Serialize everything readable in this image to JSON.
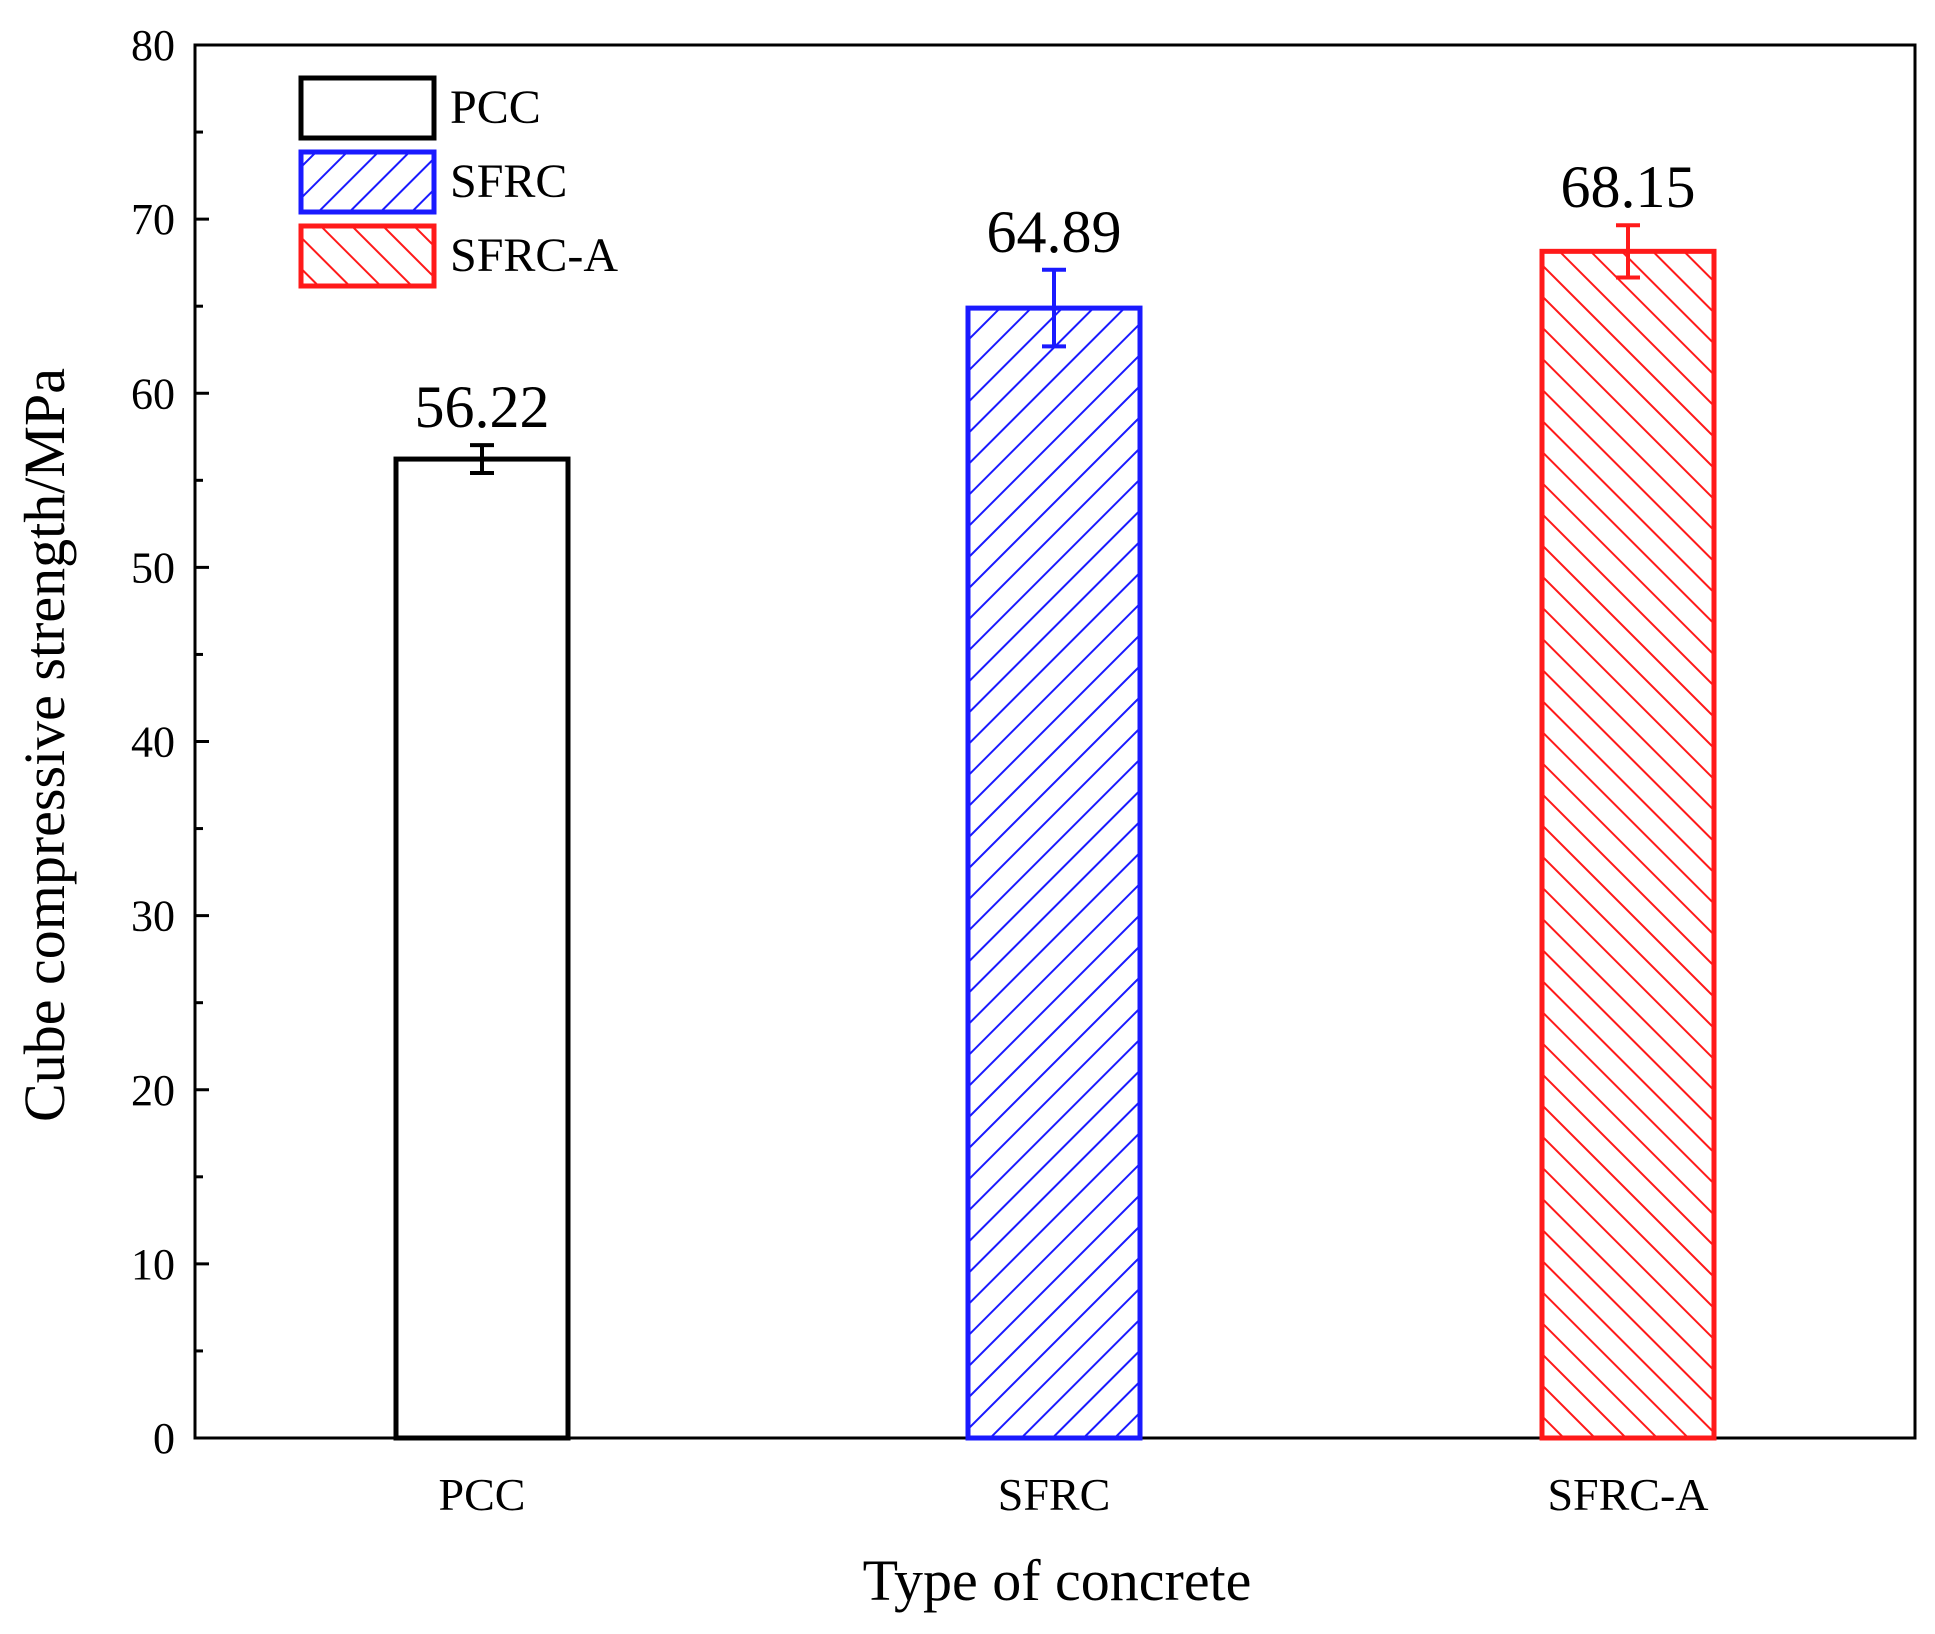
{
  "chart_data": {
    "type": "bar",
    "xlabel": "Type of concrete",
    "ylabel": "Cube compressive strength/MPa",
    "ylim": [
      0,
      80
    ],
    "yticks": [
      0,
      10,
      20,
      30,
      40,
      50,
      60,
      70,
      80
    ],
    "categories": [
      "PCC",
      "SFRC",
      "SFRC-A"
    ],
    "values": [
      56.22,
      64.89,
      68.15
    ],
    "errors": [
      0.8,
      2.2,
      1.5
    ],
    "value_labels": [
      "56.22",
      "64.89",
      "68.15"
    ],
    "colors": [
      "#000000",
      "#1a1aff",
      "#ff1a1a"
    ],
    "patterns": [
      "none",
      "diagonal-forward",
      "diagonal-back"
    ],
    "legend": {
      "placement": "top-left",
      "entries": [
        "PCC",
        "SFRC",
        "SFRC-A"
      ]
    },
    "grid": false
  }
}
